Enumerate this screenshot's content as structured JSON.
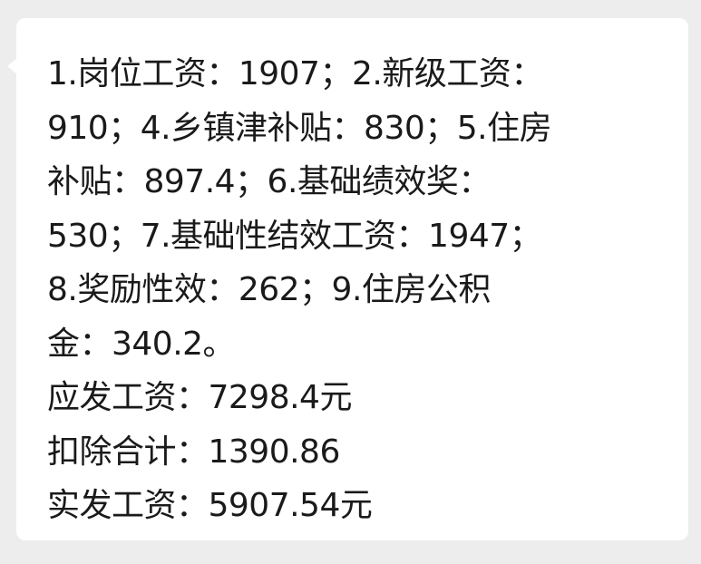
{
  "message": {
    "lines": [
      "1.岗位工资：1907；2.新级工资：",
      "910；4.乡镇津补贴：830；5.住房",
      "补贴：897.4；6.基础绩效奖：",
      "530；7.基础性结效工资：1947；",
      "8.奖励性效：262；9.住房公积",
      "金：340.2。",
      "应发工资：7298.4元",
      "扣除合计：1390.86",
      "实发工资：5907.54元"
    ]
  },
  "colors": {
    "background": "#ededed",
    "bubble": "#ffffff",
    "text": "#1a1a1a"
  }
}
